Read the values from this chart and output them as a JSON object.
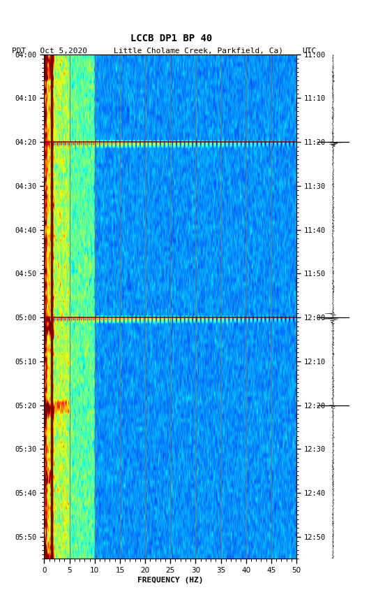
{
  "title": "LCCB DP1 BP 40",
  "subtitle_left": "PDT   Oct 5,2020",
  "subtitle_center": "Little Cholame Creek, Parkfield, Ca)",
  "subtitle_right": "UTC",
  "xlabel": "FREQUENCY (HZ)",
  "freq_min": 0,
  "freq_max": 50,
  "pdt_ticks": [
    "04:00",
    "04:10",
    "04:20",
    "04:30",
    "04:40",
    "04:50",
    "05:00",
    "05:10",
    "05:20",
    "05:30",
    "05:40",
    "05:50"
  ],
  "utc_ticks": [
    "11:00",
    "11:10",
    "11:20",
    "11:30",
    "11:40",
    "11:50",
    "12:00",
    "12:10",
    "12:20",
    "12:30",
    "12:40",
    "12:50"
  ],
  "total_time_minutes": 115,
  "vline_freqs": [
    5,
    10,
    15,
    20,
    25,
    30,
    35,
    40,
    45
  ],
  "vline_color": "#8B7355",
  "hline_times": [
    20,
    60
  ],
  "hline_color": "#8B0000",
  "dark_red_col_freq": 1.5,
  "waveform_hlines": [
    20,
    60,
    80
  ],
  "seed": 42
}
